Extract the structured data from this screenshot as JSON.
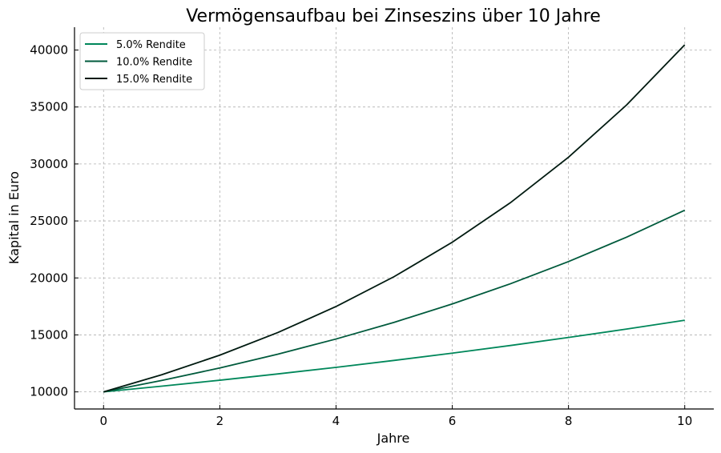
{
  "chart_data": {
    "type": "line",
    "title": "Vermögensaufbau bei Zinseszins über 10 Jahre",
    "xlabel": "Jahre",
    "ylabel": "Kapital in Euro",
    "xlim": [
      -0.5,
      10.5
    ],
    "ylim": [
      8500,
      42000
    ],
    "xticks": [
      0,
      2,
      4,
      6,
      8,
      10
    ],
    "yticks": [
      10000,
      15000,
      20000,
      25000,
      30000,
      35000,
      40000
    ],
    "grid": true,
    "legend_position": "top-left",
    "x": [
      0,
      1,
      2,
      3,
      4,
      5,
      6,
      7,
      8,
      9,
      10
    ],
    "series": [
      {
        "name": "5.0% Rendite",
        "color": "#00875a",
        "values": [
          10000,
          10500,
          11025,
          11576,
          12155,
          12763,
          13401,
          14071,
          14775,
          15513,
          16289
        ]
      },
      {
        "name": "10.0% Rendite",
        "color": "#005a3c",
        "values": [
          10000,
          11000,
          12100,
          13310,
          14641,
          16105,
          17716,
          19487,
          21436,
          23579,
          25937
        ]
      },
      {
        "name": "15.0% Rendite",
        "color": "#001a10",
        "values": [
          10000,
          11500,
          13225,
          15209,
          17490,
          20114,
          23131,
          26600,
          30590,
          35179,
          40456
        ]
      }
    ]
  }
}
